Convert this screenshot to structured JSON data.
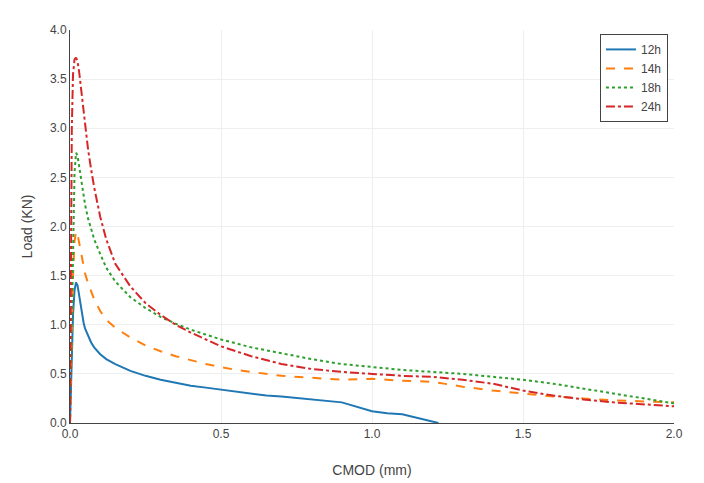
{
  "chart_data": {
    "type": "line",
    "xlabel": "CMOD (mm)",
    "ylabel": "Load (KN)",
    "xlim": [
      0,
      2
    ],
    "ylim": [
      0,
      4
    ],
    "xticks": [
      {
        "value": 0,
        "label": "0.0"
      },
      0.5,
      {
        "value": 1.0,
        "label": "1.0"
      },
      1.5,
      {
        "value": 2.0,
        "label": "2.0"
      }
    ],
    "yticks": [
      {
        "value": 0,
        "label": "0.0"
      },
      0.5,
      {
        "value": 1.0,
        "label": "1.0"
      },
      1.5,
      {
        "value": 2.0,
        "label": "2.0"
      },
      2.5,
      {
        "value": 3.0,
        "label": "3.0"
      },
      3.5,
      {
        "value": 4.0,
        "label": "4.0"
      }
    ],
    "grid": true,
    "legend": "upper right",
    "series": [
      {
        "name": "12h",
        "line_style": "solid",
        "x": [
          0.0,
          0.005,
          0.01,
          0.015,
          0.02,
          0.025,
          0.03,
          0.035,
          0.04,
          0.045,
          0.05,
          0.055,
          0.06,
          0.07,
          0.08,
          0.09,
          0.1,
          0.12,
          0.15,
          0.2,
          0.25,
          0.3,
          0.35,
          0.4,
          0.45,
          0.5,
          0.55,
          0.6,
          0.65,
          0.7,
          0.8,
          0.9,
          1.0,
          1.05,
          1.1,
          1.15,
          1.2,
          1.22
        ],
        "values": [
          0.0,
          0.6,
          1.1,
          1.35,
          1.43,
          1.4,
          1.3,
          1.2,
          1.1,
          1.02,
          0.96,
          0.92,
          0.88,
          0.82,
          0.77,
          0.73,
          0.7,
          0.65,
          0.6,
          0.53,
          0.48,
          0.44,
          0.41,
          0.38,
          0.36,
          0.34,
          0.32,
          0.3,
          0.28,
          0.27,
          0.24,
          0.21,
          0.12,
          0.1,
          0.09,
          0.05,
          0.01,
          0.0
        ]
      },
      {
        "name": "14h",
        "line_style": "dashed",
        "x": [
          0.0,
          0.005,
          0.01,
          0.015,
          0.02,
          0.025,
          0.03,
          0.035,
          0.04,
          0.045,
          0.05,
          0.06,
          0.07,
          0.08,
          0.09,
          0.1,
          0.12,
          0.15,
          0.2,
          0.25,
          0.3,
          0.35,
          0.4,
          0.45,
          0.5,
          0.55,
          0.6,
          0.7,
          0.8,
          0.9,
          1.0,
          1.1,
          1.2,
          1.3,
          1.4,
          1.5,
          1.6,
          1.7,
          1.8,
          1.9,
          2.0
        ],
        "values": [
          0.0,
          0.8,
          1.5,
          1.85,
          1.95,
          1.92,
          1.85,
          1.76,
          1.68,
          1.6,
          1.52,
          1.42,
          1.33,
          1.26,
          1.2,
          1.14,
          1.05,
          0.97,
          0.87,
          0.79,
          0.73,
          0.68,
          0.64,
          0.6,
          0.57,
          0.54,
          0.52,
          0.48,
          0.46,
          0.44,
          0.45,
          0.43,
          0.42,
          0.37,
          0.33,
          0.3,
          0.27,
          0.25,
          0.23,
          0.22,
          0.21
        ]
      },
      {
        "name": "18h",
        "line_style": "dotted",
        "x": [
          0.0,
          0.005,
          0.01,
          0.015,
          0.02,
          0.025,
          0.03,
          0.035,
          0.04,
          0.045,
          0.05,
          0.06,
          0.07,
          0.08,
          0.1,
          0.12,
          0.15,
          0.2,
          0.25,
          0.3,
          0.35,
          0.4,
          0.45,
          0.5,
          0.6,
          0.7,
          0.8,
          0.9,
          1.0,
          1.1,
          1.2,
          1.3,
          1.4,
          1.5,
          1.6,
          1.7,
          1.8,
          2.0
        ],
        "values": [
          0.0,
          1.0,
          2.0,
          2.55,
          2.75,
          2.72,
          2.62,
          2.52,
          2.42,
          2.32,
          2.22,
          2.08,
          1.97,
          1.87,
          1.72,
          1.58,
          1.44,
          1.28,
          1.17,
          1.08,
          1.01,
          0.95,
          0.9,
          0.85,
          0.77,
          0.71,
          0.65,
          0.6,
          0.57,
          0.54,
          0.52,
          0.5,
          0.47,
          0.44,
          0.4,
          0.35,
          0.3,
          0.2
        ]
      },
      {
        "name": "24h",
        "line_style": "dashdot",
        "x": [
          0.0,
          0.003,
          0.006,
          0.01,
          0.015,
          0.02,
          0.025,
          0.03,
          0.035,
          0.04,
          0.045,
          0.05,
          0.06,
          0.07,
          0.08,
          0.1,
          0.12,
          0.15,
          0.2,
          0.25,
          0.3,
          0.35,
          0.4,
          0.45,
          0.5,
          0.6,
          0.7,
          0.8,
          0.9,
          1.0,
          1.1,
          1.2,
          1.3,
          1.4,
          1.5,
          1.6,
          1.7,
          1.8,
          1.9,
          2.0
        ],
        "values": [
          0.0,
          1.5,
          3.0,
          3.55,
          3.7,
          3.72,
          3.68,
          3.58,
          3.45,
          3.3,
          3.16,
          3.02,
          2.78,
          2.58,
          2.4,
          2.1,
          1.87,
          1.62,
          1.39,
          1.22,
          1.1,
          1.0,
          0.92,
          0.85,
          0.78,
          0.68,
          0.6,
          0.55,
          0.52,
          0.5,
          0.48,
          0.47,
          0.44,
          0.4,
          0.33,
          0.28,
          0.24,
          0.21,
          0.19,
          0.17
        ]
      }
    ]
  }
}
